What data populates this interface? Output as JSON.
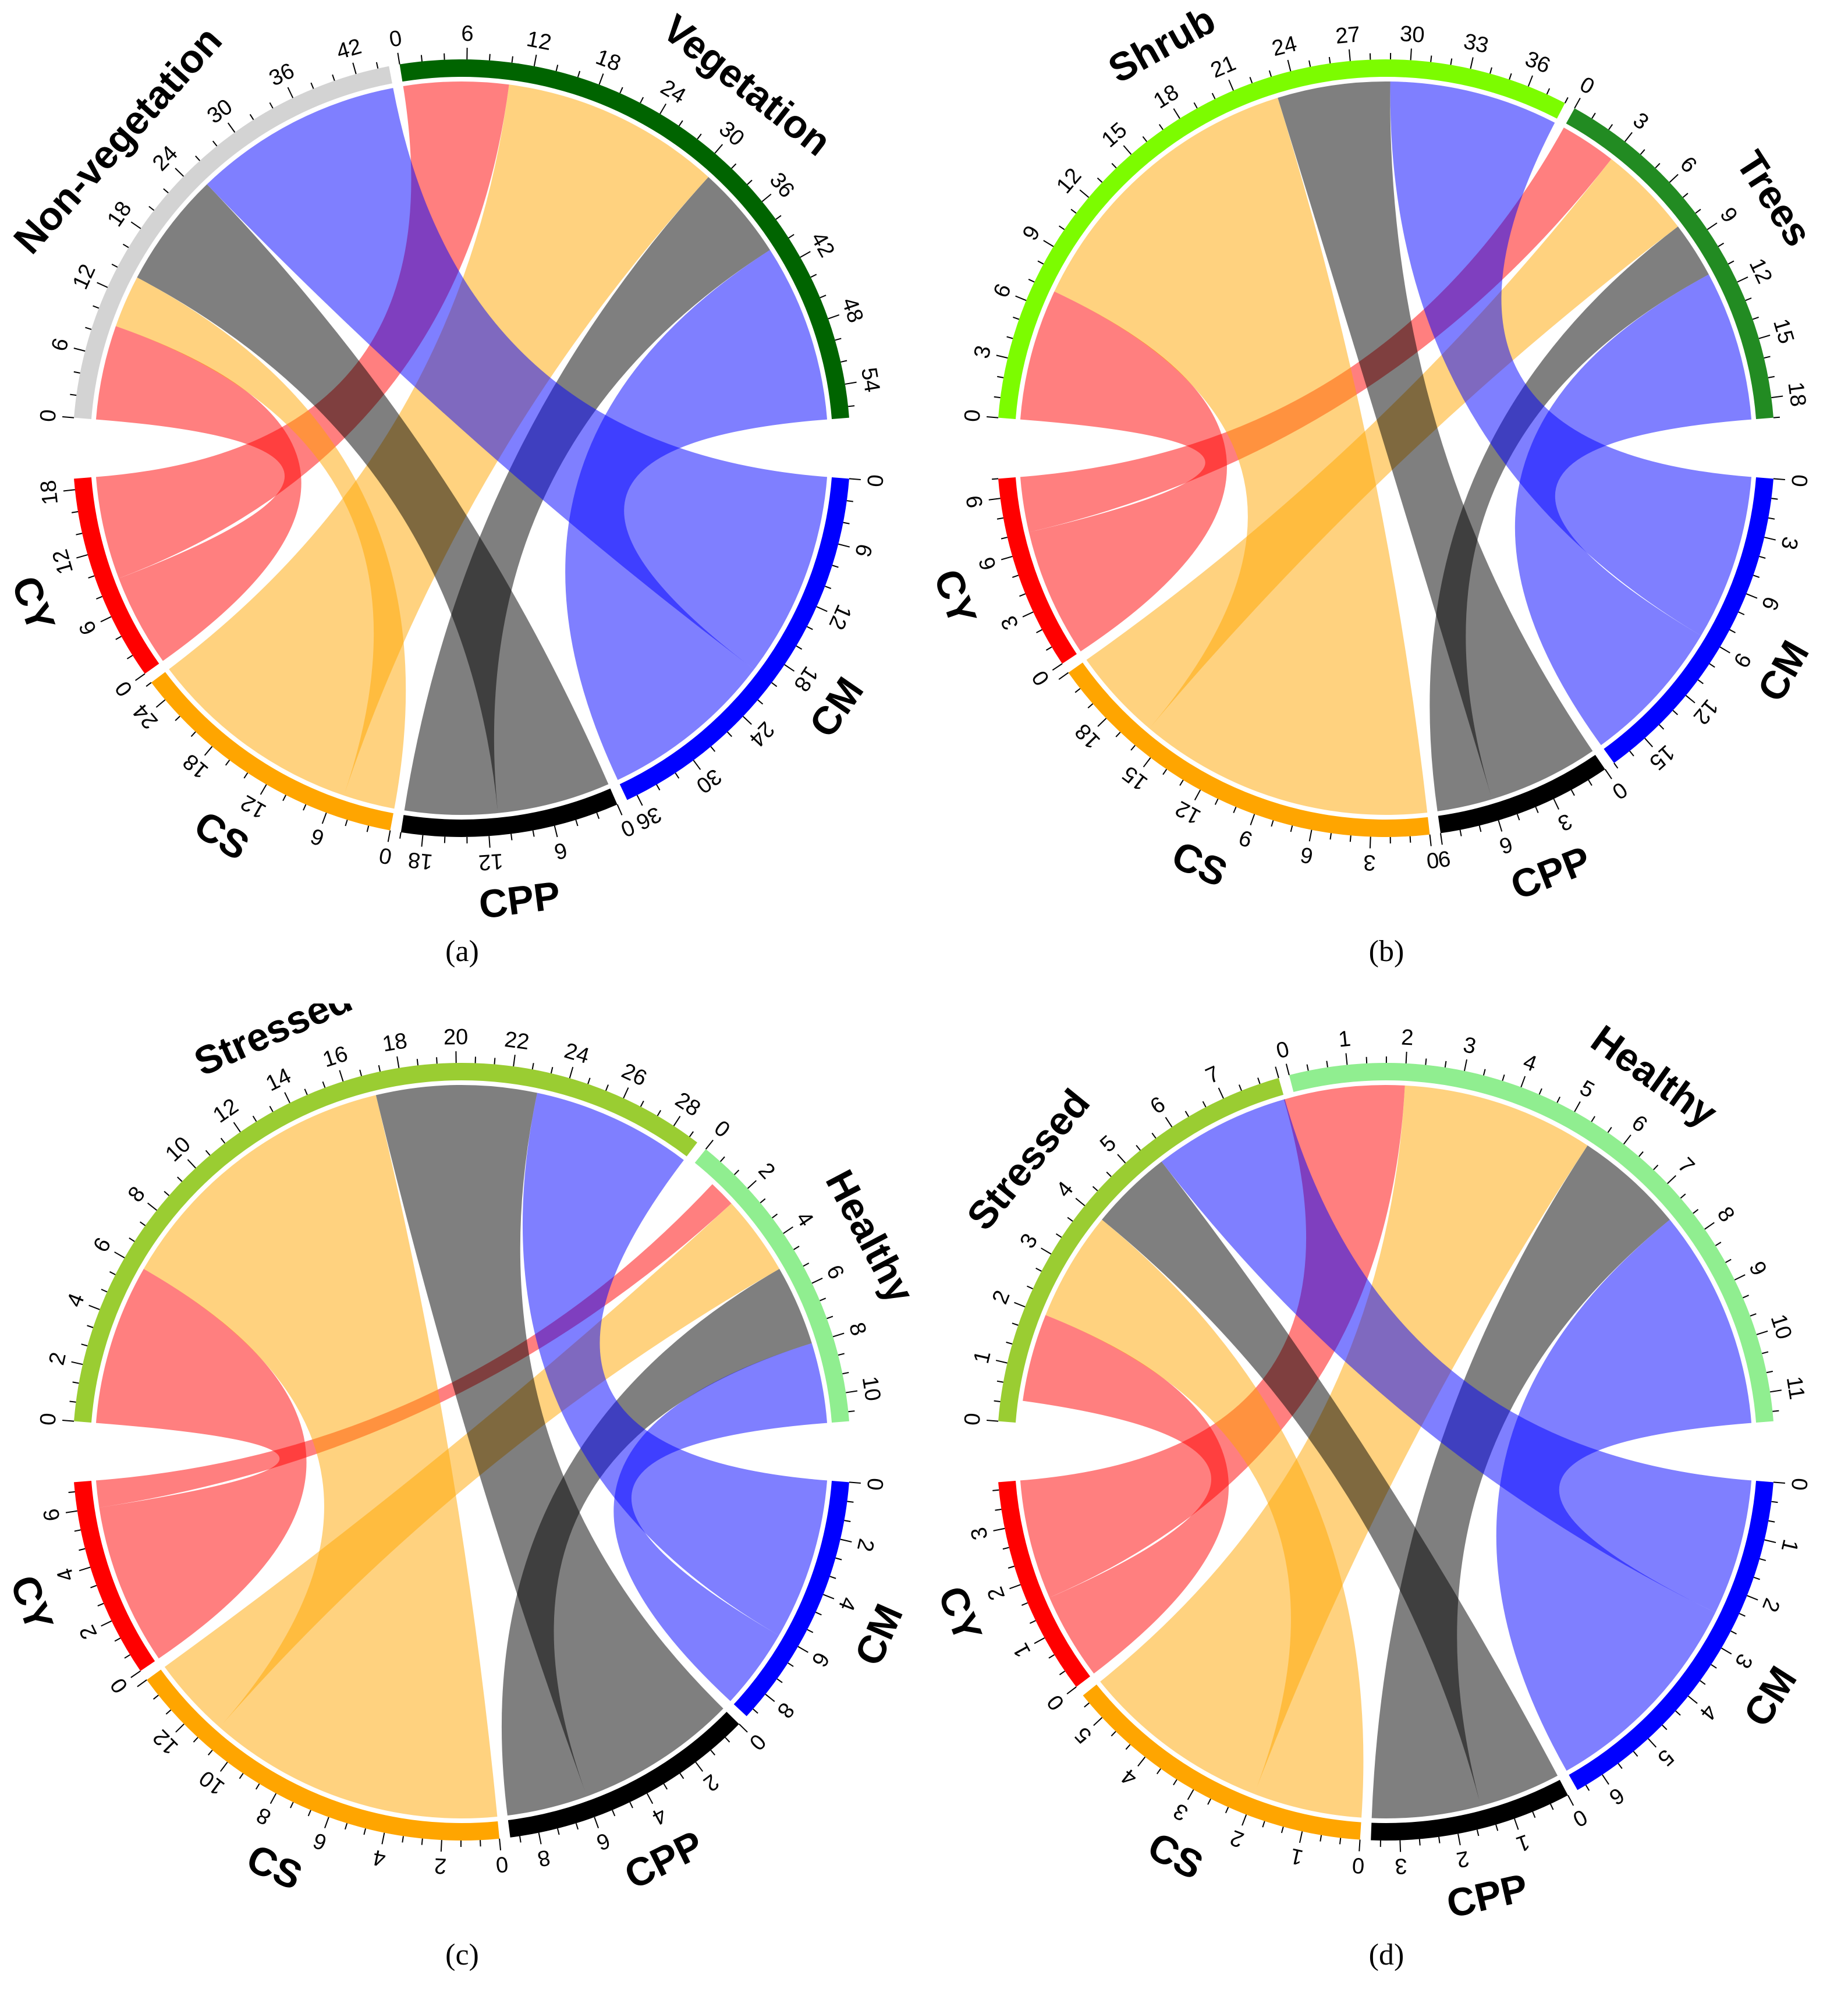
{
  "panels": [
    {
      "id": "a",
      "caption": "(a)",
      "sectors": [
        {
          "name": "Non-vegetation",
          "role": "target",
          "color": "#d3d3d3",
          "total": 45,
          "ticks": [
            0,
            6,
            12,
            18,
            24,
            30,
            36,
            42
          ]
        },
        {
          "name": "Vegetation",
          "role": "target",
          "color": "#006400",
          "total": 57,
          "ticks": [
            0,
            6,
            12,
            18,
            24,
            30,
            36,
            42,
            48,
            54
          ]
        },
        {
          "name": "CM",
          "role": "source",
          "color": "#0000ff",
          "total": 37,
          "ticks": [
            0,
            6,
            12,
            18,
            24,
            30,
            36
          ]
        },
        {
          "name": "CPP",
          "role": "source",
          "color": "#000000",
          "total": 20,
          "ticks": [
            0,
            6,
            12,
            18
          ]
        },
        {
          "name": "CS",
          "role": "source",
          "color": "#ffa500",
          "total": 26,
          "ticks": [
            0,
            6,
            12,
            18,
            24
          ]
        },
        {
          "name": "CY",
          "role": "source",
          "color": "#ff0000",
          "total": 19,
          "ticks": [
            0,
            6,
            12,
            18
          ]
        }
      ],
      "flows": [
        {
          "from": "CY",
          "to": "Non-vegetation",
          "value": 9
        },
        {
          "from": "CY",
          "to": "Vegetation",
          "value": 10
        },
        {
          "from": "CS",
          "to": "Non-vegetation",
          "value": 5
        },
        {
          "from": "CS",
          "to": "Vegetation",
          "value": 21
        },
        {
          "from": "CPP",
          "to": "Non-vegetation",
          "value": 11
        },
        {
          "from": "CPP",
          "to": "Vegetation",
          "value": 9
        },
        {
          "from": "CM",
          "to": "Non-vegetation",
          "value": 20
        },
        {
          "from": "CM",
          "to": "Vegetation",
          "value": 17
        }
      ]
    },
    {
      "id": "b",
      "caption": "(b)",
      "sectors": [
        {
          "name": "Shrub",
          "role": "target",
          "color": "#7cfc00",
          "total": 38,
          "ticks": [
            0,
            3,
            6,
            9,
            12,
            15,
            18,
            21,
            24,
            27,
            30,
            33,
            36
          ]
        },
        {
          "name": "Trees",
          "role": "target",
          "color": "#228b22",
          "total": 19,
          "ticks": [
            0,
            3,
            6,
            9,
            12,
            15,
            18
          ]
        },
        {
          "name": "CM",
          "role": "source",
          "color": "#0000ff",
          "total": 17,
          "ticks": [
            0,
            3,
            6,
            9,
            12,
            15
          ]
        },
        {
          "name": "CPP",
          "role": "source",
          "color": "#000000",
          "total": 9,
          "ticks": [
            0,
            3,
            6,
            9
          ]
        },
        {
          "name": "CS",
          "role": "source",
          "color": "#ffa500",
          "total": 21,
          "ticks": [
            0,
            3,
            6,
            9,
            12,
            15,
            18
          ]
        },
        {
          "name": "CY",
          "role": "source",
          "color": "#ff0000",
          "total": 10,
          "ticks": [
            0,
            3,
            6,
            9
          ]
        }
      ],
      "flows": [
        {
          "from": "CY",
          "to": "Shrub",
          "value": 7
        },
        {
          "from": "CY",
          "to": "Trees",
          "value": 3
        },
        {
          "from": "CS",
          "to": "Shrub",
          "value": 16
        },
        {
          "from": "CS",
          "to": "Trees",
          "value": 5
        },
        {
          "from": "CPP",
          "to": "Shrub",
          "value": 6
        },
        {
          "from": "CPP",
          "to": "Trees",
          "value": 3
        },
        {
          "from": "CM",
          "to": "Shrub",
          "value": 9
        },
        {
          "from": "CM",
          "to": "Trees",
          "value": 8
        }
      ]
    },
    {
      "id": "c",
      "caption": "(c)",
      "sectors": [
        {
          "name": "Stressed",
          "role": "target",
          "color": "#9acd32",
          "total": 29,
          "ticks": [
            0,
            2,
            4,
            6,
            8,
            10,
            12,
            14,
            16,
            18,
            20,
            22,
            24,
            26,
            28
          ]
        },
        {
          "name": "Healthy",
          "role": "target",
          "color": "#90ee90",
          "total": 11,
          "ticks": [
            0,
            2,
            4,
            6,
            8,
            10
          ]
        },
        {
          "name": "CM",
          "role": "source",
          "color": "#0000ff",
          "total": 9,
          "ticks": [
            0,
            2,
            4,
            6,
            8
          ]
        },
        {
          "name": "CPP",
          "role": "source",
          "color": "#000000",
          "total": 9,
          "ticks": [
            0,
            2,
            4,
            6,
            8
          ]
        },
        {
          "name": "CS",
          "role": "source",
          "color": "#ffa500",
          "total": 14,
          "ticks": [
            0,
            2,
            4,
            6,
            8,
            10,
            12
          ]
        },
        {
          "name": "CY",
          "role": "source",
          "color": "#ff0000",
          "total": 7,
          "ticks": [
            0,
            2,
            4,
            6
          ]
        }
      ],
      "flows": [
        {
          "from": "CY",
          "to": "Stressed",
          "value": 6
        },
        {
          "from": "CY",
          "to": "Healthy",
          "value": 1
        },
        {
          "from": "CS",
          "to": "Stressed",
          "value": 11
        },
        {
          "from": "CS",
          "to": "Healthy",
          "value": 3
        },
        {
          "from": "CPP",
          "to": "Stressed",
          "value": 6
        },
        {
          "from": "CPP",
          "to": "Healthy",
          "value": 3
        },
        {
          "from": "CM",
          "to": "Stressed",
          "value": 6
        },
        {
          "from": "CM",
          "to": "Healthy",
          "value": 3
        }
      ]
    },
    {
      "id": "d",
      "caption": "(d)",
      "sectors": [
        {
          "name": "Stressed",
          "role": "target",
          "color": "#9acd32",
          "total": 8,
          "ticks": [
            0,
            1,
            2,
            3,
            4,
            5,
            6,
            7
          ]
        },
        {
          "name": "Healthy",
          "role": "target",
          "color": "#90ee90",
          "total": 11.5,
          "ticks": [
            0,
            1,
            2,
            3,
            4,
            5,
            6,
            7,
            8,
            9,
            10,
            11
          ]
        },
        {
          "name": "CM",
          "role": "source",
          "color": "#0000ff",
          "total": 6.5,
          "ticks": [
            0,
            1,
            2,
            3,
            4,
            5,
            6
          ]
        },
        {
          "name": "CPP",
          "role": "source",
          "color": "#000000",
          "total": 3.5,
          "ticks": [
            0,
            1,
            2,
            3
          ]
        },
        {
          "name": "CS",
          "role": "source",
          "color": "#ffa500",
          "total": 5.5,
          "ticks": [
            0,
            1,
            2,
            3,
            4,
            5
          ]
        },
        {
          "name": "CY",
          "role": "source",
          "color": "#ff0000",
          "total": 3.8,
          "ticks": [
            0,
            1,
            2,
            3
          ]
        }
      ],
      "flows": [
        {
          "from": "CY",
          "to": "Stressed",
          "value": 1.6
        },
        {
          "from": "CY",
          "to": "Healthy",
          "value": 2.2
        },
        {
          "from": "CS",
          "to": "Stressed",
          "value": 2.0
        },
        {
          "from": "CS",
          "to": "Healthy",
          "value": 3.5
        },
        {
          "from": "CPP",
          "to": "Stressed",
          "value": 1.5
        },
        {
          "from": "CPP",
          "to": "Healthy",
          "value": 2.0
        },
        {
          "from": "CM",
          "to": "Stressed",
          "value": 2.5
        },
        {
          "from": "CM",
          "to": "Healthy",
          "value": 4.0
        }
      ]
    }
  ]
}
